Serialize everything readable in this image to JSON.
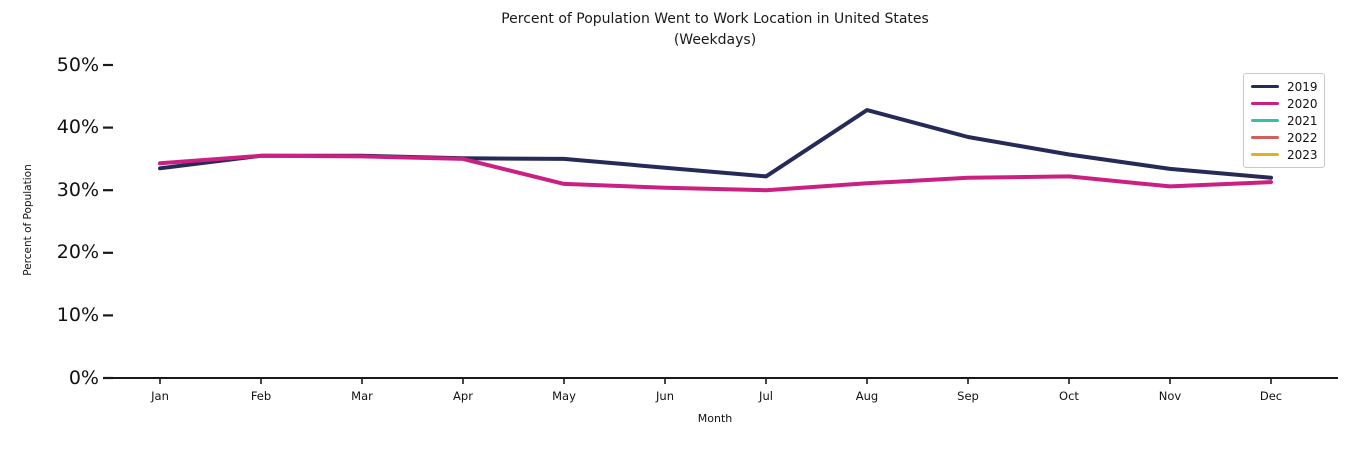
{
  "chart_data": {
    "type": "line",
    "title": "Percent of Population Went to Work Location in United States",
    "subtitle": "(Weekdays)",
    "xlabel": "Month",
    "ylabel": "Percent of Population",
    "categories": [
      "Jan",
      "Feb",
      "Mar",
      "Apr",
      "May",
      "Jun",
      "Jul",
      "Aug",
      "Sep",
      "Oct",
      "Nov",
      "Dec"
    ],
    "y_tick_labels": [
      "0%",
      "10%",
      "20%",
      "30%",
      "40%",
      "50%"
    ],
    "y_tick_values": [
      0,
      10,
      20,
      30,
      40,
      50
    ],
    "ylim": [
      0,
      50
    ],
    "grid": false,
    "legend_position": "upper right",
    "axis_color": "#1a1a1a",
    "series": [
      {
        "name": "2019",
        "color": "#262a57",
        "values": [
          33.5,
          35.5,
          35.5,
          35.1,
          35.0,
          33.6,
          32.2,
          42.8,
          38.5,
          35.7,
          33.4,
          32.0
        ]
      },
      {
        "name": "2020",
        "color": "#cb2081",
        "values": [
          34.3,
          35.5,
          35.4,
          35.0,
          31.0,
          30.4,
          30.0,
          31.1,
          32.0,
          32.2,
          30.6,
          31.3
        ]
      },
      {
        "name": "2021",
        "color": "#35c0a0",
        "values": []
      },
      {
        "name": "2022",
        "color": "#d35f5a",
        "values": []
      },
      {
        "name": "2023",
        "color": "#e0b31e",
        "values": []
      }
    ]
  }
}
